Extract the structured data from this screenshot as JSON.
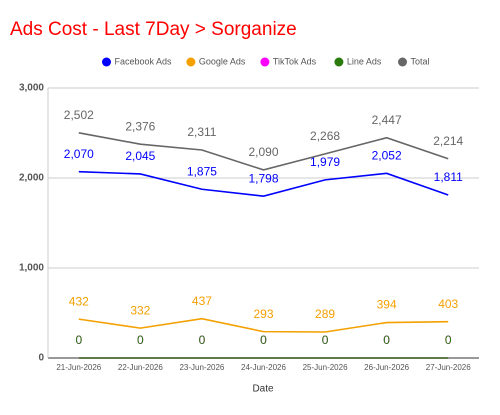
{
  "chart_data": {
    "type": "line",
    "title": "Ads Cost - Last 7Day > Sorganize",
    "x_label": "Date",
    "categories": [
      "21-Jun-2026",
      "22-Jun-2026",
      "23-Jun-2026",
      "24-Jun-2026",
      "25-Jun-2026",
      "26-Jun-2026",
      "27-Jun-2026"
    ],
    "series": [
      {
        "name": "Facebook Ads",
        "color": "#0000ff",
        "values": [
          2070,
          2045,
          1875,
          1798,
          1979,
          2052,
          1811
        ],
        "value_labels": [
          "2,070",
          "2,045",
          "1,875",
          "1,798",
          "1,979",
          "2,052",
          "1,811"
        ]
      },
      {
        "name": "Google Ads",
        "color": "#f4a000",
        "values": [
          432,
          332,
          437,
          293,
          289,
          394,
          403
        ]
      },
      {
        "name": "TikTok Ads",
        "color": "#ff00ff",
        "values": [
          0,
          0,
          0,
          0,
          0,
          0,
          0
        ]
      },
      {
        "name": "Line Ads",
        "color": "#2a7a0e",
        "values": [
          0,
          0,
          0,
          0,
          0,
          0,
          0
        ]
      },
      {
        "name": "Total",
        "color": "#666666",
        "values": [
          2502,
          2376,
          2311,
          2090,
          2268,
          2447,
          2214
        ],
        "value_labels": [
          "2,502",
          "2,376",
          "2,311",
          "2,090",
          "2,268",
          "2,447",
          "2,214"
        ]
      }
    ],
    "ylim": [
      0,
      3000
    ],
    "yticks": [
      0,
      {
        "value": 1000,
        "label": "1,000"
      },
      {
        "value": 2000,
        "label": "2,000"
      },
      {
        "value": 3000,
        "label": "3,000"
      }
    ],
    "grid": true,
    "legend": "top"
  }
}
